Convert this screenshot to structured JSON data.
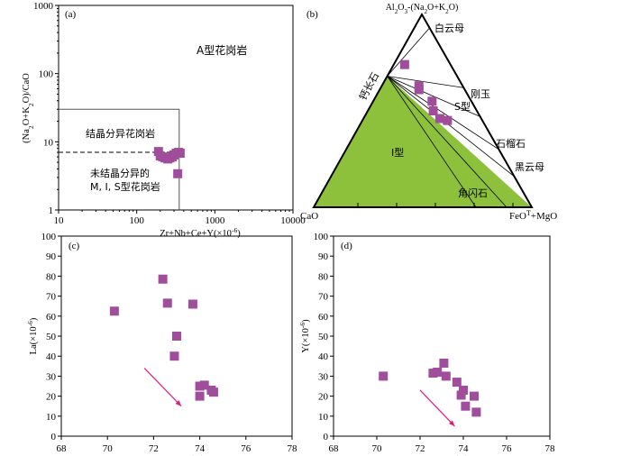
{
  "chart_data": [
    {
      "id": "a",
      "type": "scatter",
      "panel_label": "(a)",
      "x_scale": "log",
      "y_scale": "log",
      "xlim": [
        10,
        10000
      ],
      "ylim": [
        1,
        1000
      ],
      "x_ticks": [
        "10",
        "100",
        "1000",
        "10000"
      ],
      "y_ticks": [
        "1",
        "10",
        "100",
        "1000"
      ],
      "ylabel_parts": [
        "(Na",
        "2",
        "O+K",
        "2",
        "O)/CaO"
      ],
      "xlabel_parts": [
        "Zr+Nb+Ce+Y(×10",
        "-6",
        ")"
      ],
      "field_labels": {
        "a_type": "A型花岗岩",
        "fractionated": "结晶分异花岗岩",
        "unfractionated_line1": "未结晶分异的",
        "unfractionated_line2": "M, I, S型花岗岩"
      },
      "boundary": {
        "x_max": 350,
        "y_top": 30,
        "y_dashed": 7
      },
      "marker_color": "#a04d9c",
      "points": [
        {
          "x": 190,
          "y": 7.2
        },
        {
          "x": 200,
          "y": 6.2
        },
        {
          "x": 215,
          "y": 6.0
        },
        {
          "x": 230,
          "y": 5.8
        },
        {
          "x": 250,
          "y": 5.6
        },
        {
          "x": 265,
          "y": 5.8
        },
        {
          "x": 285,
          "y": 6.0
        },
        {
          "x": 300,
          "y": 6.4
        },
        {
          "x": 320,
          "y": 6.8
        },
        {
          "x": 345,
          "y": 7.0
        },
        {
          "x": 360,
          "y": 6.8
        },
        {
          "x": 335,
          "y": 3.4
        }
      ]
    },
    {
      "id": "b",
      "type": "ternary",
      "panel_label": "(b)",
      "apex_top_parts": [
        "Al",
        "2",
        "O",
        "3",
        "-(Na",
        "2",
        "O+K",
        "2",
        "O)"
      ],
      "apex_left": "CaO",
      "apex_right_parts": [
        "FeO",
        "T",
        "+MgO"
      ],
      "mineral_labels": {
        "muscovite": "白云母",
        "anorthite": "钙长石",
        "corundum": "刚玉",
        "s_type": "S型",
        "garnet": "石榴石",
        "biotite": "黑云母",
        "i_type": "I型",
        "hornblende": "角闪石"
      },
      "field_color": "#8dc13c",
      "marker_color": "#a04d9c",
      "points_ternary": [
        {
          "a": 0.74,
          "c": 0.21,
          "f": 0.05
        },
        {
          "a": 0.63,
          "c": 0.2,
          "f": 0.17
        },
        {
          "a": 0.61,
          "c": 0.21,
          "f": 0.18
        },
        {
          "a": 0.55,
          "c": 0.18,
          "f": 0.27
        },
        {
          "a": 0.5,
          "c": 0.2,
          "f": 0.3
        },
        {
          "a": 0.46,
          "c": 0.19,
          "f": 0.35
        },
        {
          "a": 0.45,
          "c": 0.16,
          "f": 0.39
        }
      ]
    },
    {
      "id": "c",
      "type": "scatter",
      "panel_label": "(c)",
      "xlim": [
        68,
        78
      ],
      "ylim": [
        0,
        100
      ],
      "x_ticks": [
        68,
        70,
        72,
        74,
        76,
        78
      ],
      "y_ticks": [
        0,
        10,
        20,
        30,
        40,
        50,
        60,
        70,
        80,
        90,
        100
      ],
      "ylabel_parts": [
        "La(×10",
        "-6",
        ")"
      ],
      "xlabel_parts": [
        "SiO",
        "2",
        "(%)"
      ],
      "marker_color": "#a04d9c",
      "arrow_color": "#e5197e",
      "trend_arrow": {
        "x1": 71.6,
        "y1": 34,
        "x2": 73.2,
        "y2": 15
      },
      "points": [
        {
          "x": 70.3,
          "y": 62.5
        },
        {
          "x": 72.4,
          "y": 78.5
        },
        {
          "x": 72.6,
          "y": 66.5
        },
        {
          "x": 73.0,
          "y": 50.0
        },
        {
          "x": 72.9,
          "y": 40.0
        },
        {
          "x": 73.7,
          "y": 66.0
        },
        {
          "x": 74.0,
          "y": 25.0
        },
        {
          "x": 74.2,
          "y": 25.5
        },
        {
          "x": 74.0,
          "y": 20.0
        },
        {
          "x": 74.5,
          "y": 23.0
        },
        {
          "x": 74.6,
          "y": 22.0
        }
      ]
    },
    {
      "id": "d",
      "type": "scatter",
      "panel_label": "(d)",
      "xlim": [
        68,
        78
      ],
      "ylim": [
        0,
        100
      ],
      "x_ticks": [
        68,
        70,
        72,
        74,
        76,
        78
      ],
      "y_ticks": [
        0,
        10,
        20,
        30,
        40,
        50,
        60,
        70,
        80,
        90,
        100
      ],
      "ylabel_parts": [
        "Y(×10",
        "-6",
        ")"
      ],
      "xlabel_parts": [
        "SiO",
        "2",
        "(%)"
      ],
      "marker_color": "#a04d9c",
      "arrow_color": "#e5197e",
      "trend_arrow": {
        "x1": 72.0,
        "y1": 23,
        "x2": 73.6,
        "y2": 5
      },
      "points": [
        {
          "x": 70.3,
          "y": 30.0
        },
        {
          "x": 72.6,
          "y": 31.5
        },
        {
          "x": 72.8,
          "y": 32.0
        },
        {
          "x": 73.1,
          "y": 36.5
        },
        {
          "x": 73.2,
          "y": 30.0
        },
        {
          "x": 73.7,
          "y": 27.0
        },
        {
          "x": 73.9,
          "y": 20.5
        },
        {
          "x": 74.0,
          "y": 23.0
        },
        {
          "x": 74.1,
          "y": 15.0
        },
        {
          "x": 74.5,
          "y": 20.0
        },
        {
          "x": 74.6,
          "y": 12.0
        }
      ]
    }
  ]
}
